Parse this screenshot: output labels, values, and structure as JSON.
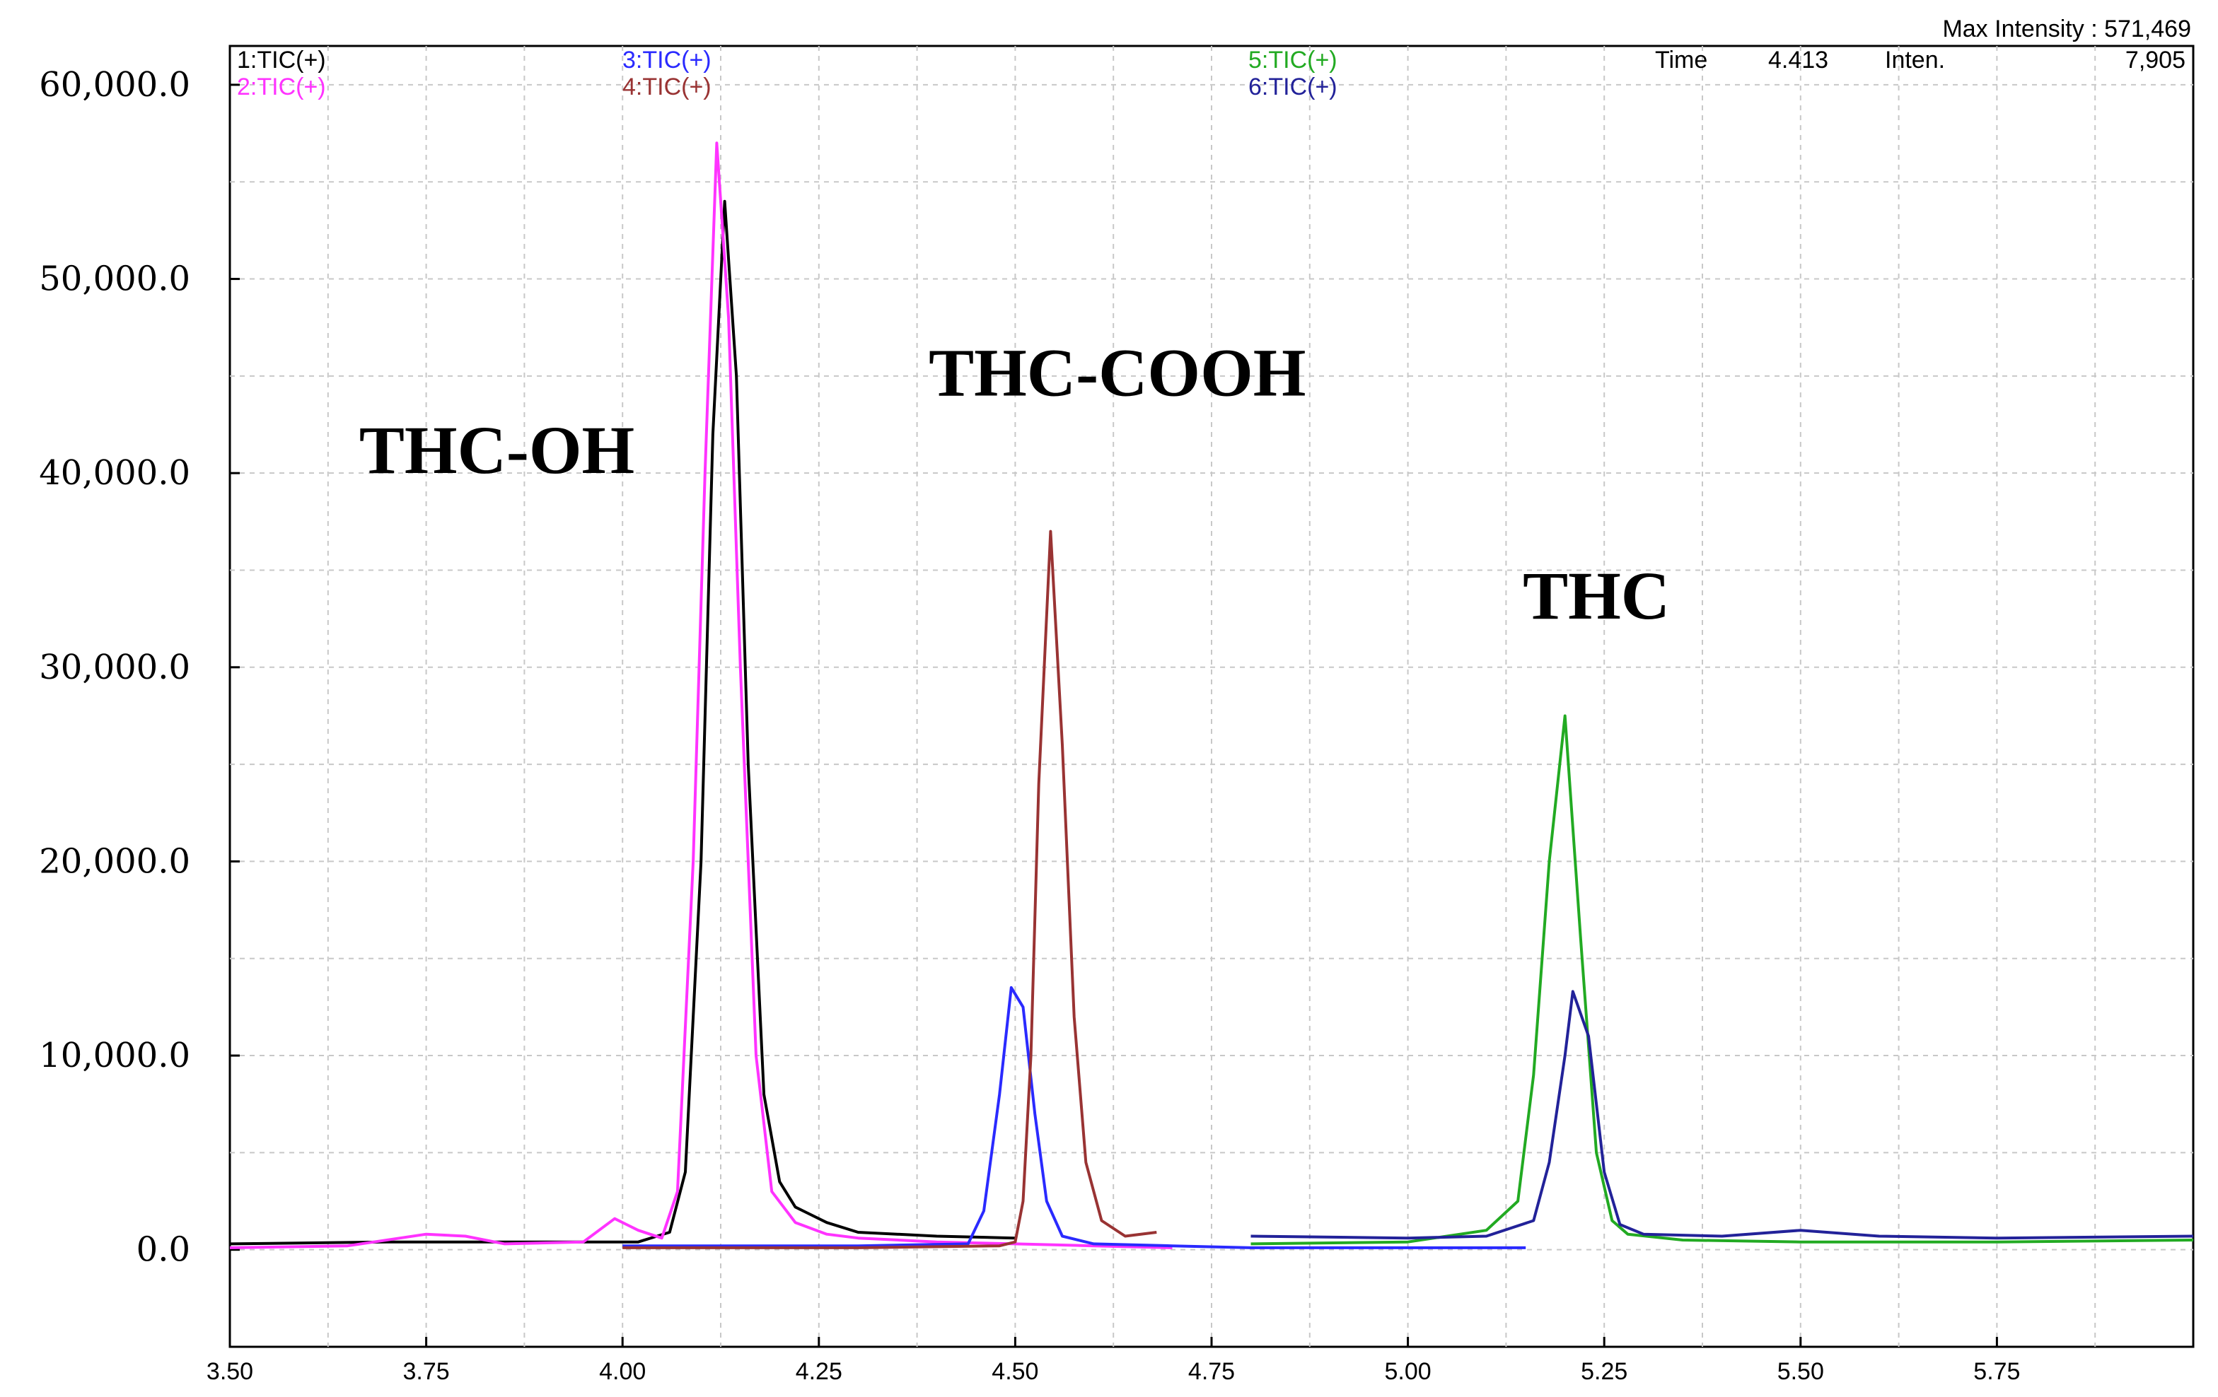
{
  "header": {
    "max_intensity": "Max Intensity : 571,469",
    "time_label": "Time",
    "time_value": "4.413",
    "inten_label": "Inten.",
    "inten_value": "7,905"
  },
  "legend": [
    {
      "label": "1:TIC(+)",
      "color": "#000000"
    },
    {
      "label": "2:TIC(+)",
      "color": "#ff33ff"
    },
    {
      "label": "3:TIC(+)",
      "color": "#2a2aff"
    },
    {
      "label": "4:TIC(+)",
      "color": "#993333"
    },
    {
      "label": "5:TIC(+)",
      "color": "#22aa22"
    },
    {
      "label": "6:TIC(+)",
      "color": "#222299"
    }
  ],
  "annotations": [
    {
      "text": "THC-OH",
      "x": 3.84,
      "y": 40000
    },
    {
      "text": "THC-COOH",
      "x": 4.63,
      "y": 44000
    },
    {
      "text": "THC",
      "x": 5.24,
      "y": 32500
    }
  ],
  "chart_data": {
    "type": "line",
    "xlim": [
      3.5,
      6.0
    ],
    "ylim": [
      -5000,
      62000
    ],
    "xticks": [
      3.5,
      3.75,
      4.0,
      4.25,
      4.5,
      4.75,
      5.0,
      5.25,
      5.5,
      5.75
    ],
    "xtick_labels": [
      "3.50",
      "3.75",
      "4.00",
      "4.25",
      "4.50",
      "4.75",
      "5.00",
      "5.25",
      "5.50",
      "5.75"
    ],
    "yticks": [
      0,
      10000,
      20000,
      30000,
      40000,
      50000,
      60000
    ],
    "ytick_labels": [
      "0.0",
      "10,000.0",
      "20,000.0",
      "30,000.0",
      "40,000.0",
      "50,000.0",
      "60,000.0"
    ],
    "grid": true,
    "series": [
      {
        "name": "1:TIC(+)",
        "color": "#000000",
        "x": [
          3.5,
          3.7,
          3.9,
          4.02,
          4.06,
          4.08,
          4.1,
          4.115,
          4.13,
          4.145,
          4.16,
          4.18,
          4.2,
          4.22,
          4.26,
          4.3,
          4.4,
          4.5
        ],
        "y": [
          300,
          400,
          400,
          400,
          900,
          4000,
          20000,
          42000,
          54000,
          45000,
          25000,
          8000,
          3500,
          2200,
          1400,
          900,
          700,
          600
        ]
      },
      {
        "name": "2:TIC(+)",
        "color": "#ff33ff",
        "x": [
          3.5,
          3.65,
          3.75,
          3.8,
          3.85,
          3.95,
          3.99,
          4.02,
          4.05,
          4.07,
          4.09,
          4.105,
          4.12,
          4.135,
          4.15,
          4.17,
          4.19,
          4.22,
          4.26,
          4.3,
          4.4,
          4.5,
          4.6,
          4.7
        ],
        "y": [
          100,
          200,
          800,
          700,
          300,
          400,
          1600,
          1000,
          600,
          3000,
          20000,
          40000,
          57000,
          48000,
          30000,
          10000,
          3000,
          1400,
          800,
          600,
          400,
          300,
          200,
          100
        ]
      },
      {
        "name": "3:TIC(+)",
        "color": "#2a2aff",
        "x": [
          4.0,
          4.3,
          4.44,
          4.46,
          4.48,
          4.495,
          4.51,
          4.525,
          4.54,
          4.56,
          4.6,
          4.7,
          4.8,
          5.0,
          5.15
        ],
        "y": [
          200,
          200,
          300,
          2000,
          8000,
          13500,
          12500,
          7000,
          2500,
          700,
          300,
          200,
          100,
          100,
          100
        ]
      },
      {
        "name": "4:TIC(+)",
        "color": "#993333",
        "x": [
          4.0,
          4.3,
          4.48,
          4.5,
          4.51,
          4.52,
          4.53,
          4.545,
          4.56,
          4.575,
          4.59,
          4.61,
          4.64,
          4.68
        ],
        "y": [
          100,
          100,
          200,
          400,
          2500,
          10000,
          24000,
          37000,
          26000,
          12000,
          4500,
          1500,
          700,
          900
        ]
      },
      {
        "name": "5:TIC(+)",
        "color": "#22aa22",
        "x": [
          4.8,
          5.0,
          5.1,
          5.14,
          5.16,
          5.18,
          5.2,
          5.22,
          5.24,
          5.26,
          5.28,
          5.35,
          5.5,
          5.75,
          6.0
        ],
        "y": [
          300,
          400,
          1000,
          2500,
          9000,
          20000,
          27500,
          16000,
          5000,
          1500,
          800,
          500,
          400,
          400,
          500
        ]
      },
      {
        "name": "6:TIC(+)",
        "color": "#222299",
        "x": [
          4.8,
          5.0,
          5.1,
          5.16,
          5.18,
          5.2,
          5.21,
          5.23,
          5.25,
          5.27,
          5.3,
          5.4,
          5.5,
          5.6,
          5.75,
          6.0
        ],
        "y": [
          700,
          600,
          700,
          1500,
          4500,
          10000,
          13300,
          11000,
          4000,
          1300,
          800,
          700,
          1000,
          700,
          600,
          700
        ]
      }
    ]
  }
}
